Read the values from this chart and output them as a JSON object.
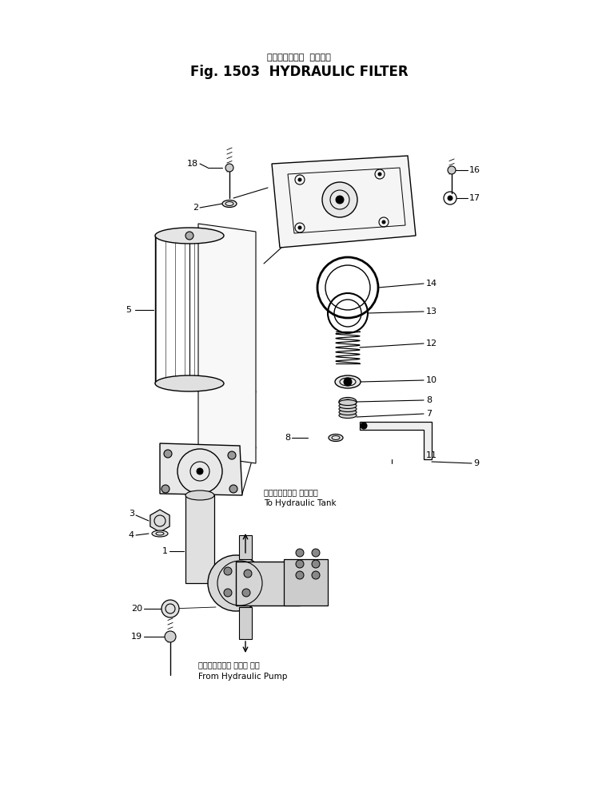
{
  "title_japanese": "ハイドロリック  フィルタ",
  "title_english": "Fig. 1503  HYDRAULIC FILTER",
  "bg_color": "#ffffff",
  "line_color": "#000000",
  "title_fontsize": 12,
  "subtitle_fontsize": 8,
  "label_fontsize": 8,
  "ann_tank_jp": "ハイドロリック タンクへ",
  "ann_tank_en": "To Hydraulic Tank",
  "ann_pump_jp": "ハイドロリック ポンプ から",
  "ann_pump_en": "From Hydraulic Pump"
}
